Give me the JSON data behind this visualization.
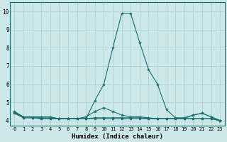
{
  "xlabel": "Humidex (Indice chaleur)",
  "ylabel": "",
  "background_color": "#cce8e8",
  "grid_color": "#aacece",
  "line_color": "#1a6e6e",
  "xlim": [
    -0.5,
    23.5
  ],
  "ylim": [
    3.7,
    10.5
  ],
  "xticks": [
    0,
    1,
    2,
    3,
    4,
    5,
    6,
    7,
    8,
    9,
    10,
    11,
    12,
    13,
    14,
    15,
    16,
    17,
    18,
    19,
    20,
    21,
    22,
    23
  ],
  "yticks": [
    4,
    5,
    6,
    7,
    8,
    9,
    10
  ],
  "series": [
    {
      "x": [
        0,
        1,
        2,
        3,
        4,
        5,
        6,
        7,
        8,
        9,
        10,
        11,
        12,
        13,
        14,
        15,
        16,
        17,
        18,
        19,
        20,
        21,
        22,
        23
      ],
      "y": [
        4.5,
        4.2,
        4.2,
        4.2,
        4.2,
        4.1,
        4.1,
        4.1,
        4.1,
        5.1,
        6.0,
        8.0,
        9.9,
        9.9,
        8.3,
        6.8,
        6.0,
        4.6,
        4.15,
        4.15,
        4.3,
        4.4,
        4.2,
        4.0
      ]
    },
    {
      "x": [
        0,
        1,
        2,
        3,
        4,
        5,
        6,
        7,
        8,
        9,
        10,
        11,
        12,
        13,
        14,
        15,
        16,
        17,
        18,
        19,
        20,
        21,
        22,
        23
      ],
      "y": [
        4.45,
        4.2,
        4.2,
        4.15,
        4.15,
        4.1,
        4.1,
        4.1,
        4.2,
        4.5,
        4.7,
        4.5,
        4.3,
        4.2,
        4.2,
        4.15,
        4.1,
        4.1,
        4.1,
        4.1,
        4.3,
        4.4,
        4.2,
        4.0
      ]
    },
    {
      "x": [
        0,
        1,
        2,
        3,
        4,
        5,
        6,
        7,
        8,
        9,
        10,
        11,
        12,
        13,
        14,
        15,
        16,
        17,
        18,
        19,
        20,
        21,
        22,
        23
      ],
      "y": [
        4.4,
        4.15,
        4.15,
        4.1,
        4.1,
        4.1,
        4.1,
        4.1,
        4.1,
        4.15,
        4.15,
        4.15,
        4.15,
        4.15,
        4.15,
        4.1,
        4.1,
        4.1,
        4.1,
        4.1,
        4.1,
        4.1,
        4.1,
        4.0
      ]
    },
    {
      "x": [
        0,
        1,
        2,
        3,
        4,
        5,
        6,
        7,
        8,
        9,
        10,
        11,
        12,
        13,
        14,
        15,
        16,
        17,
        18,
        19,
        20,
        21,
        22,
        23
      ],
      "y": [
        4.4,
        4.15,
        4.15,
        4.1,
        4.1,
        4.1,
        4.1,
        4.1,
        4.1,
        4.1,
        4.1,
        4.1,
        4.1,
        4.1,
        4.1,
        4.1,
        4.1,
        4.1,
        4.1,
        4.1,
        4.1,
        4.1,
        4.1,
        3.98
      ]
    }
  ]
}
